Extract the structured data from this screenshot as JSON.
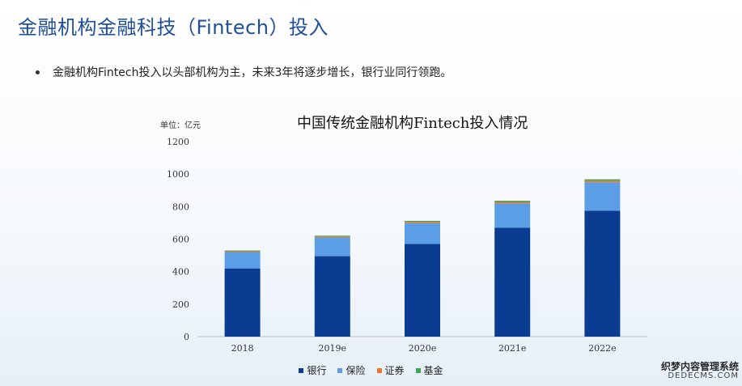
{
  "header": {
    "title": "金融机构金融科技（Fintech）投入",
    "bullet": "金融机构Fintech投入以头部机构为主，未来3年将逐步增长，银行业同行领跑。"
  },
  "chart_data": {
    "type": "bar",
    "stacked": true,
    "title": "中国传统金融机构Fintech投入情况",
    "unit_label": "单位：亿元",
    "categories": [
      "2018",
      "2019e",
      "2020e",
      "2021e",
      "2022e"
    ],
    "ylim": [
      0,
      1200
    ],
    "yticks": [
      0,
      200,
      400,
      600,
      800,
      1000,
      1200
    ],
    "grid": false,
    "legend_position": "bottom",
    "series": [
      {
        "name": "银行",
        "color": "#0a3d91",
        "values": [
          420,
          495,
          570,
          670,
          775
        ]
      },
      {
        "name": "保险",
        "color": "#5b9ee6",
        "values": [
          100,
          115,
          128,
          150,
          175
        ]
      },
      {
        "name": "证券",
        "color": "#e8772e",
        "values": [
          5,
          6,
          8,
          9,
          10
        ]
      },
      {
        "name": "基金",
        "color": "#3aa655",
        "values": [
          5,
          5,
          6,
          7,
          8
        ]
      }
    ]
  },
  "watermark": {
    "line1": "织梦内容管理系统",
    "line2": "DEDECMS.COM"
  }
}
